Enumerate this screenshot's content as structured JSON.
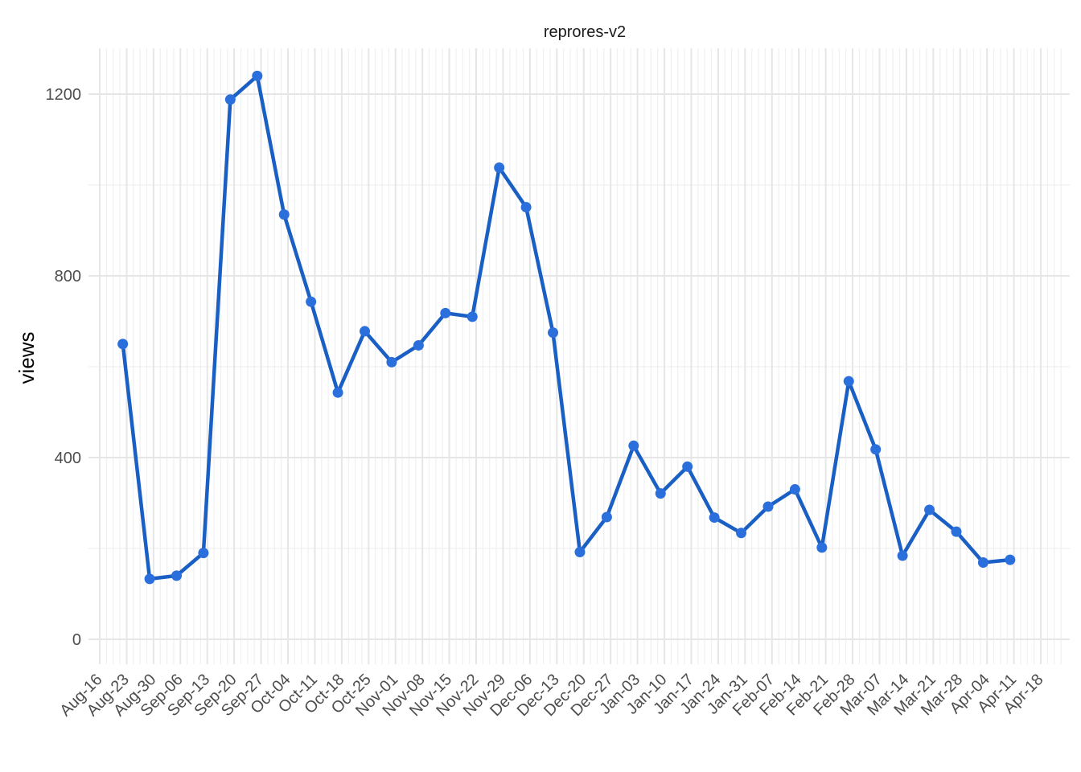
{
  "chart_data": {
    "type": "line",
    "title": "reprores-v2",
    "xlabel": "",
    "ylabel": "views",
    "ylim": [
      -50,
      1300
    ],
    "y_ticks": [
      0,
      400,
      800,
      1200
    ],
    "x_tick_labels": [
      "Aug-16",
      "Aug-23",
      "Aug-30",
      "Sep-06",
      "Sep-13",
      "Sep-20",
      "Sep-27",
      "Oct-04",
      "Oct-11",
      "Oct-18",
      "Oct-25",
      "Nov-01",
      "Nov-08",
      "Nov-15",
      "Nov-22",
      "Nov-29",
      "Dec-06",
      "Dec-13",
      "Dec-20",
      "Dec-27",
      "Jan-03",
      "Jan-10",
      "Jan-17",
      "Jan-24",
      "Jan-31",
      "Feb-07",
      "Feb-14",
      "Feb-21",
      "Feb-28",
      "Mar-07",
      "Mar-14",
      "Mar-21",
      "Mar-28",
      "Apr-04",
      "Apr-11",
      "Apr-18"
    ],
    "x": [
      "Aug-22",
      "Aug-29",
      "Sep-05",
      "Sep-12",
      "Sep-19",
      "Sep-26",
      "Oct-03",
      "Oct-10",
      "Oct-17",
      "Oct-24",
      "Oct-31",
      "Nov-07",
      "Nov-14",
      "Nov-21",
      "Nov-28",
      "Dec-05",
      "Dec-12",
      "Dec-19",
      "Dec-26",
      "Jan-02",
      "Jan-09",
      "Jan-16",
      "Jan-23",
      "Jan-30",
      "Feb-06",
      "Feb-13",
      "Feb-20",
      "Feb-27",
      "Mar-06",
      "Mar-13",
      "Mar-20",
      "Mar-27",
      "Apr-03",
      "Apr-10"
    ],
    "values": [
      650,
      133,
      140,
      190,
      1188,
      1240,
      935,
      743,
      543,
      678,
      610,
      647,
      718,
      710,
      1038,
      951,
      675,
      192,
      269,
      426,
      321,
      380,
      268,
      234,
      292,
      330,
      202,
      568,
      418,
      184,
      285,
      237,
      169,
      175
    ],
    "grid": true,
    "legend": "none",
    "line_color": "#1a5fc4",
    "point_color": "#2a6fdb"
  }
}
